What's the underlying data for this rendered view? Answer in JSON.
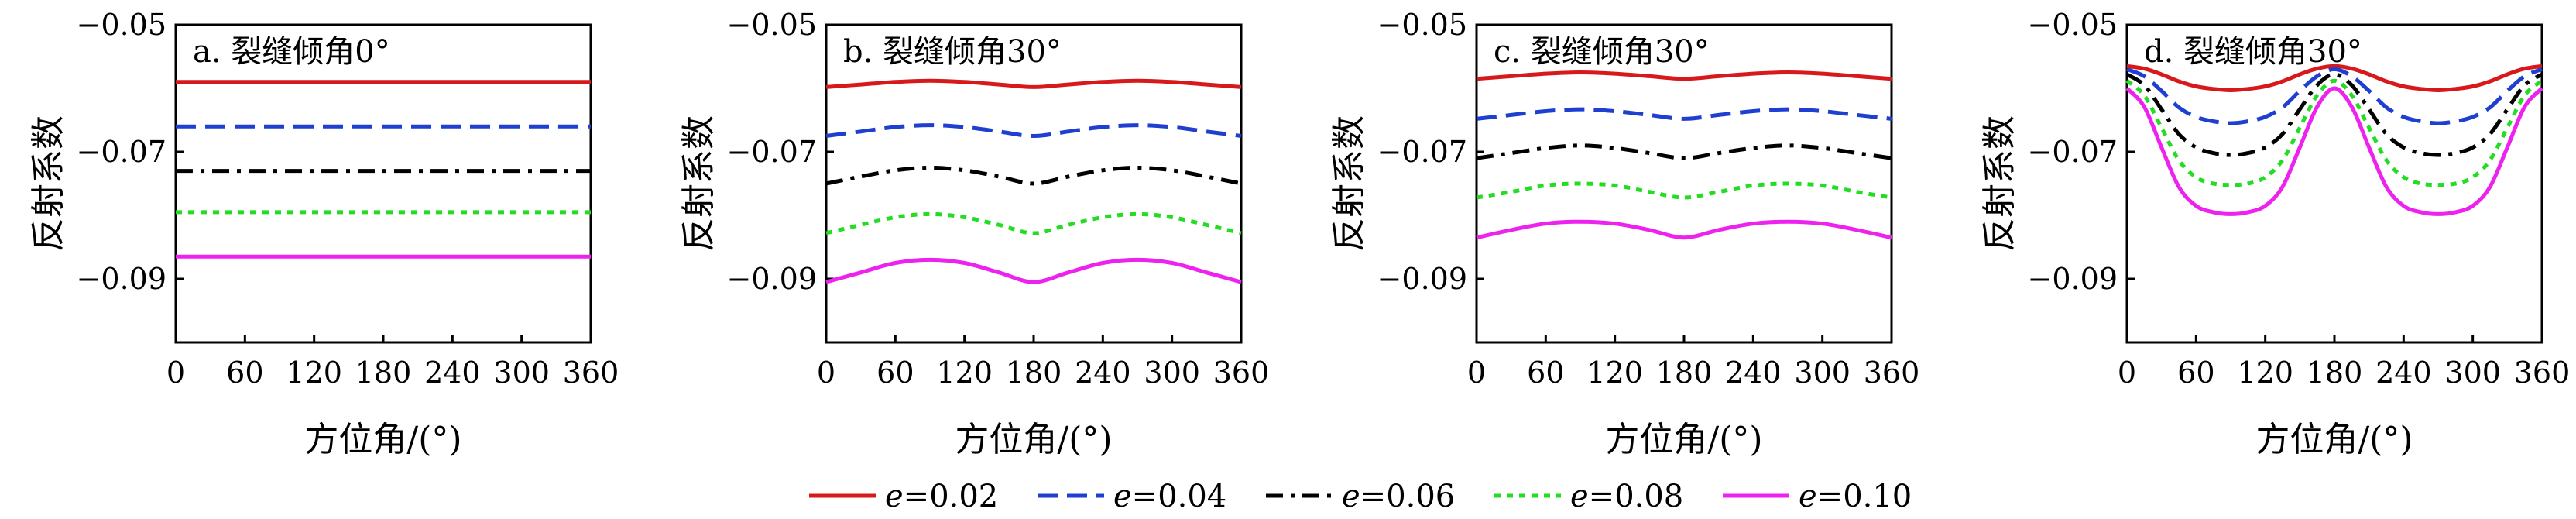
{
  "chart_data": [
    {
      "type": "line",
      "title": "a. 裂缝倾角0°",
      "xlabel": "方位角/(°)",
      "ylabel": "反射系数",
      "xlim": [
        0,
        360
      ],
      "ylim": [
        -0.1,
        -0.05
      ],
      "xticks": [
        "0",
        "60",
        "120",
        "180",
        "240",
        "300",
        "360"
      ],
      "yticks": [
        "−0.05",
        "−0.07",
        "−0.09"
      ],
      "x": [
        0,
        30,
        60,
        90,
        120,
        150,
        180,
        210,
        240,
        270,
        300,
        330,
        360
      ],
      "series": [
        {
          "e": "0.02",
          "values": [
            -0.059,
            -0.059,
            -0.059,
            -0.059,
            -0.059,
            -0.059,
            -0.059,
            -0.059,
            -0.059,
            -0.059,
            -0.059,
            -0.059,
            -0.059
          ]
        },
        {
          "e": "0.04",
          "values": [
            -0.066,
            -0.066,
            -0.066,
            -0.066,
            -0.066,
            -0.066,
            -0.066,
            -0.066,
            -0.066,
            -0.066,
            -0.066,
            -0.066,
            -0.066
          ]
        },
        {
          "e": "0.06",
          "values": [
            -0.073,
            -0.073,
            -0.073,
            -0.073,
            -0.073,
            -0.073,
            -0.073,
            -0.073,
            -0.073,
            -0.073,
            -0.073,
            -0.073,
            -0.073
          ]
        },
        {
          "e": "0.08",
          "values": [
            -0.0795,
            -0.0795,
            -0.0795,
            -0.0795,
            -0.0795,
            -0.0795,
            -0.0795,
            -0.0795,
            -0.0795,
            -0.0795,
            -0.0795,
            -0.0795,
            -0.0795
          ]
        },
        {
          "e": "0.10",
          "values": [
            -0.0865,
            -0.0865,
            -0.0865,
            -0.0865,
            -0.0865,
            -0.0865,
            -0.0865,
            -0.0865,
            -0.0865,
            -0.0865,
            -0.0865,
            -0.0865,
            -0.0865
          ]
        }
      ]
    },
    {
      "type": "line",
      "title": "b. 裂缝倾角30°",
      "xlabel": "方位角/(°)",
      "ylabel": "反射系数",
      "xlim": [
        0,
        360
      ],
      "ylim": [
        -0.1,
        -0.05
      ],
      "xticks": [
        "0",
        "60",
        "120",
        "180",
        "240",
        "300",
        "360"
      ],
      "yticks": [
        "−0.05",
        "−0.07",
        "−0.09"
      ],
      "x": [
        0,
        30,
        60,
        90,
        120,
        150,
        180,
        210,
        240,
        270,
        300,
        330,
        360
      ],
      "series": [
        {
          "e": "0.02",
          "values": [
            -0.0598,
            -0.0594,
            -0.059,
            -0.0588,
            -0.059,
            -0.0594,
            -0.0598,
            -0.0594,
            -0.059,
            -0.0588,
            -0.059,
            -0.0594,
            -0.0598
          ]
        },
        {
          "e": "0.04",
          "values": [
            -0.0675,
            -0.0668,
            -0.0661,
            -0.0658,
            -0.0661,
            -0.0668,
            -0.0675,
            -0.0668,
            -0.0661,
            -0.0658,
            -0.0661,
            -0.0668,
            -0.0675
          ]
        },
        {
          "e": "0.06",
          "values": [
            -0.075,
            -0.0739,
            -0.0729,
            -0.0725,
            -0.0729,
            -0.0739,
            -0.075,
            -0.0739,
            -0.0729,
            -0.0725,
            -0.0729,
            -0.0739,
            -0.075
          ]
        },
        {
          "e": "0.08",
          "values": [
            -0.0828,
            -0.0815,
            -0.0803,
            -0.0798,
            -0.0803,
            -0.0815,
            -0.0828,
            -0.0815,
            -0.0803,
            -0.0798,
            -0.0803,
            -0.0815,
            -0.0828
          ]
        },
        {
          "e": "0.10",
          "values": [
            -0.0905,
            -0.089,
            -0.0875,
            -0.087,
            -0.0875,
            -0.089,
            -0.0905,
            -0.089,
            -0.0875,
            -0.087,
            -0.0875,
            -0.089,
            -0.0905
          ]
        }
      ]
    },
    {
      "type": "line",
      "title": "c. 裂缝倾角30°",
      "xlabel": "方位角/(°)",
      "ylabel": "反射系数",
      "xlim": [
        0,
        360
      ],
      "ylim": [
        -0.1,
        -0.05
      ],
      "xticks": [
        "0",
        "60",
        "120",
        "180",
        "240",
        "300",
        "360"
      ],
      "yticks": [
        "−0.05",
        "−0.07",
        "−0.09"
      ],
      "x": [
        0,
        30,
        60,
        90,
        120,
        150,
        180,
        210,
        240,
        270,
        300,
        330,
        360
      ],
      "series": [
        {
          "e": "0.02",
          "values": [
            -0.0585,
            -0.0581,
            -0.0577,
            -0.0575,
            -0.0577,
            -0.0581,
            -0.0585,
            -0.0581,
            -0.0577,
            -0.0575,
            -0.0577,
            -0.0581,
            -0.0585
          ]
        },
        {
          "e": "0.04",
          "values": [
            -0.0648,
            -0.0642,
            -0.0636,
            -0.0633,
            -0.0636,
            -0.0642,
            -0.0648,
            -0.0642,
            -0.0636,
            -0.0633,
            -0.0636,
            -0.0642,
            -0.0648
          ]
        },
        {
          "e": "0.06",
          "values": [
            -0.071,
            -0.0702,
            -0.0694,
            -0.069,
            -0.0694,
            -0.0702,
            -0.071,
            -0.0702,
            -0.0694,
            -0.069,
            -0.0694,
            -0.0702,
            -0.071
          ]
        },
        {
          "e": "0.08",
          "values": [
            -0.0772,
            -0.0763,
            -0.0753,
            -0.075,
            -0.0753,
            -0.0763,
            -0.0772,
            -0.0763,
            -0.0753,
            -0.075,
            -0.0753,
            -0.0763,
            -0.0772
          ]
        },
        {
          "e": "0.10",
          "values": [
            -0.0835,
            -0.0823,
            -0.0813,
            -0.081,
            -0.0813,
            -0.0823,
            -0.0835,
            -0.0823,
            -0.0813,
            -0.081,
            -0.0813,
            -0.0823,
            -0.0835
          ]
        }
      ]
    },
    {
      "type": "line",
      "title": "d. 裂缝倾角30°",
      "xlabel": "方位角/(°)",
      "ylabel": "反射系数",
      "xlim": [
        0,
        360
      ],
      "ylim": [
        -0.1,
        -0.05
      ],
      "xticks": [
        "0",
        "60",
        "120",
        "180",
        "240",
        "300",
        "360"
      ],
      "yticks": [
        "−0.05",
        "−0.07",
        "−0.09"
      ],
      "x": [
        0,
        15,
        30,
        45,
        60,
        75,
        90,
        105,
        120,
        135,
        150,
        165,
        180,
        195,
        210,
        225,
        240,
        255,
        270,
        285,
        300,
        315,
        330,
        345,
        360
      ],
      "series": [
        {
          "e": "0.02",
          "values": [
            -0.0565,
            -0.0569,
            -0.0578,
            -0.0589,
            -0.0597,
            -0.0601,
            -0.0603,
            -0.0601,
            -0.0597,
            -0.0589,
            -0.0578,
            -0.0569,
            -0.0565,
            -0.0569,
            -0.0578,
            -0.0589,
            -0.0597,
            -0.0601,
            -0.0603,
            -0.0601,
            -0.0597,
            -0.0589,
            -0.0578,
            -0.0569,
            -0.0565
          ]
        },
        {
          "e": "0.04",
          "values": [
            -0.057,
            -0.0581,
            -0.0604,
            -0.063,
            -0.0645,
            -0.0652,
            -0.0655,
            -0.0652,
            -0.0645,
            -0.063,
            -0.0604,
            -0.0581,
            -0.057,
            -0.0581,
            -0.0604,
            -0.063,
            -0.0645,
            -0.0652,
            -0.0655,
            -0.0652,
            -0.0645,
            -0.063,
            -0.0604,
            -0.0581,
            -0.057
          ]
        },
        {
          "e": "0.06",
          "values": [
            -0.0578,
            -0.0595,
            -0.0633,
            -0.0672,
            -0.0693,
            -0.0702,
            -0.0705,
            -0.0702,
            -0.0693,
            -0.0672,
            -0.0633,
            -0.0595,
            -0.0578,
            -0.0595,
            -0.0633,
            -0.0672,
            -0.0693,
            -0.0702,
            -0.0705,
            -0.0702,
            -0.0693,
            -0.0672,
            -0.0633,
            -0.0595,
            -0.0578
          ]
        },
        {
          "e": "0.08",
          "values": [
            -0.0588,
            -0.0611,
            -0.0662,
            -0.0713,
            -0.074,
            -0.075,
            -0.0752,
            -0.075,
            -0.074,
            -0.0713,
            -0.0662,
            -0.0611,
            -0.0588,
            -0.0611,
            -0.0662,
            -0.0713,
            -0.074,
            -0.075,
            -0.0752,
            -0.075,
            -0.074,
            -0.0713,
            -0.0662,
            -0.0611,
            -0.0588
          ]
        },
        {
          "e": "0.10",
          "values": [
            -0.06,
            -0.0629,
            -0.0693,
            -0.0755,
            -0.0785,
            -0.0795,
            -0.0798,
            -0.0795,
            -0.0785,
            -0.0755,
            -0.0693,
            -0.0629,
            -0.06,
            -0.0629,
            -0.0693,
            -0.0755,
            -0.0785,
            -0.0795,
            -0.0798,
            -0.0795,
            -0.0785,
            -0.0755,
            -0.0693,
            -0.0629,
            -0.06
          ]
        }
      ]
    }
  ],
  "legend": {
    "placement": "bottom-center",
    "symbol": "e",
    "entries": [
      {
        "label": "=0.02",
        "color": "#d7191c",
        "style": "solid"
      },
      {
        "label": "=0.04",
        "color": "#1f3fd1",
        "style": "dashed"
      },
      {
        "label": "=0.06",
        "color": "#000000",
        "style": "dashdot"
      },
      {
        "label": "=0.08",
        "color": "#22dd22",
        "style": "dotted"
      },
      {
        "label": "=0.10",
        "color": "#ee22ee",
        "style": "solid"
      }
    ]
  }
}
